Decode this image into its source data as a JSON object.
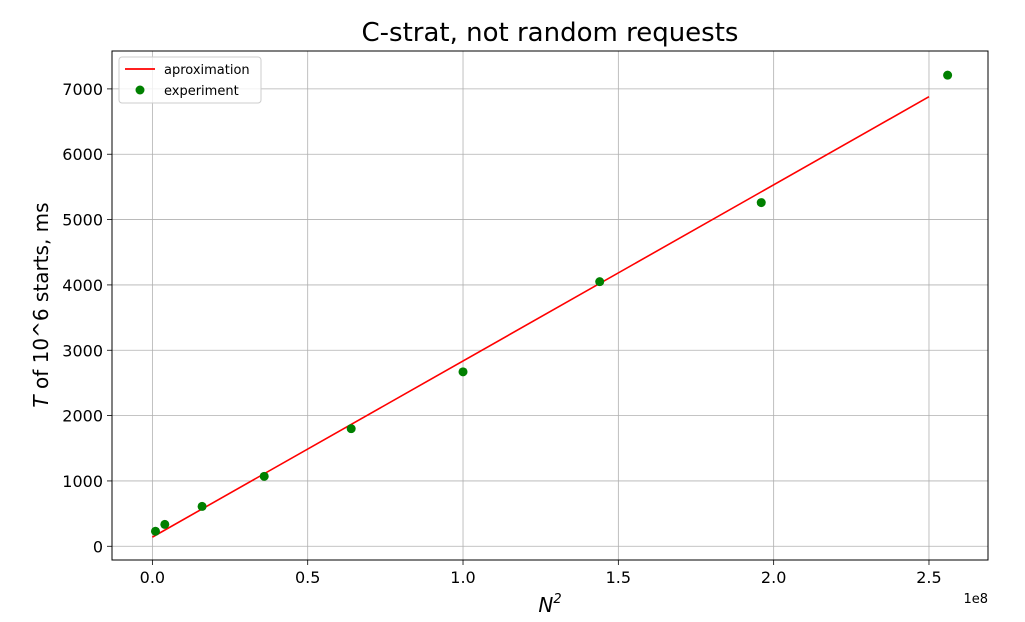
{
  "chart_data": {
    "type": "scatter",
    "title": "C-strat, not random requests",
    "xlabel_base": "N",
    "xlabel_sup": "2",
    "ylabel_italic": "T",
    "ylabel_rest": " of 10^6 starts, ms",
    "x_offset_label": "1e8",
    "xlim": [
      -0.13,
      2.69
    ],
    "ylim": [
      -210,
      7580
    ],
    "x_ticks": [
      0.0,
      0.5,
      1.0,
      1.5,
      2.0,
      2.5
    ],
    "x_tick_labels": [
      "0.0",
      "0.5",
      "1.0",
      "1.5",
      "2.0",
      "2.5"
    ],
    "y_ticks": [
      0,
      1000,
      2000,
      3000,
      4000,
      5000,
      6000,
      7000
    ],
    "y_tick_labels": [
      "0",
      "1000",
      "2000",
      "3000",
      "4000",
      "5000",
      "6000",
      "7000"
    ],
    "grid": true,
    "legend_position": "top-left",
    "series": [
      {
        "name": "aproximation",
        "kind": "line",
        "color": "#ff0000",
        "x": [
          0.0,
          2.5
        ],
        "y": [
          140,
          6880
        ]
      },
      {
        "name": "experiment",
        "kind": "scatter",
        "color": "#008000",
        "x": [
          0.01,
          0.04,
          0.16,
          0.36,
          0.64,
          1.0,
          1.44,
          1.96,
          2.56
        ],
        "y": [
          230,
          335,
          610,
          1070,
          1800,
          2670,
          4050,
          5260,
          7210
        ]
      }
    ]
  }
}
